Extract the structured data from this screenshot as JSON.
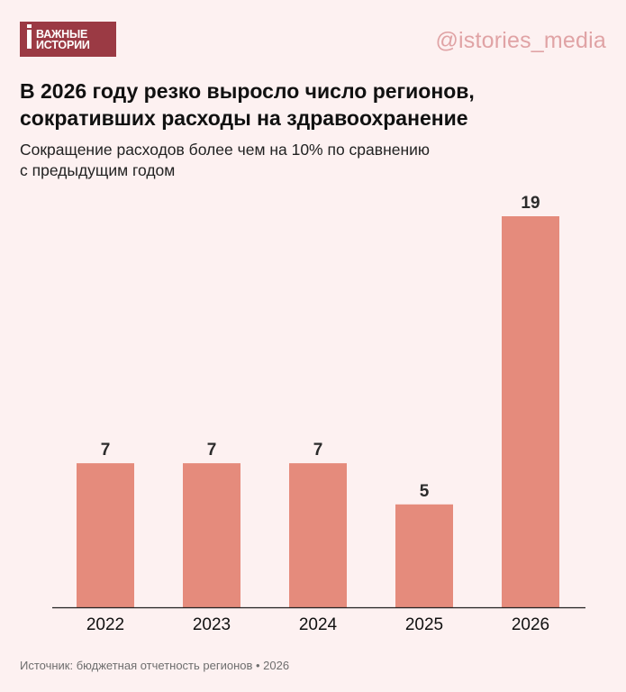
{
  "brand": {
    "logo_line1": "ВАЖНЫЕ",
    "logo_line2": "ИСТОРИИ",
    "handle": "@istories_media",
    "logo_color": "#9b3a44"
  },
  "title_lines": [
    "В 2026 году резко выросло число регионов,",
    "сокративших расходы на здравоохранение"
  ],
  "subtitle_lines": [
    "Сокращение расходов более чем на 10% по сравнению",
    "с предыдущим годом"
  ],
  "footer": "Источник: бюджетная отчетность регионов • 2026",
  "chart_data": {
    "type": "bar",
    "categories": [
      "2022",
      "2023",
      "2024",
      "2025",
      "2026"
    ],
    "values": [
      7,
      7,
      7,
      5,
      19
    ],
    "title": "В 2026 году резко выросло число регионов, сокративших расходы на здравоохранение",
    "subtitle": "Сокращение расходов более чем на 10% по сравнению с предыдущим годом",
    "xlabel": "",
    "ylabel": "",
    "ylim": [
      0,
      19
    ],
    "grid": false,
    "data_labels": true,
    "bar_color": "#e58b7c"
  }
}
